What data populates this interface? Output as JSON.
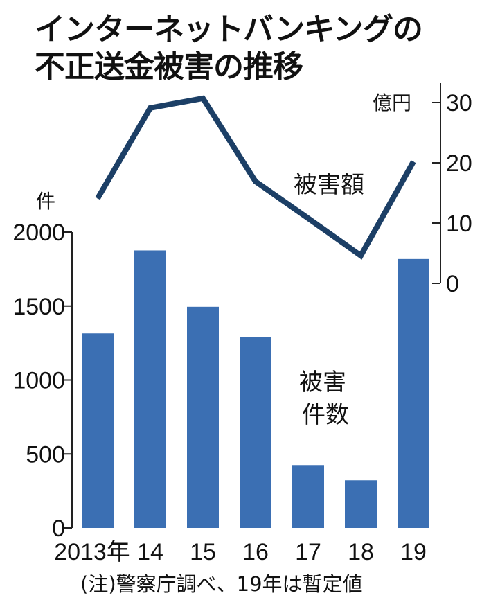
{
  "chart_data": {
    "type": "bar+line",
    "title": [
      "インターネットバンキングの",
      "不正送金被害の推移"
    ],
    "categories": [
      "2013年",
      "14",
      "15",
      "16",
      "17",
      "18",
      "19"
    ],
    "bar_series": {
      "name": [
        "被害",
        "件数"
      ],
      "values": [
        1315,
        1876,
        1495,
        1291,
        425,
        322,
        1818
      ],
      "unit": "件",
      "ylim": [
        0,
        2000
      ],
      "ticks": [
        "2000",
        "1500",
        "1000",
        "500",
        "0"
      ],
      "color": "#3b6fb3"
    },
    "line_series": {
      "name": "被害額",
      "values": [
        14.1,
        29.1,
        30.7,
        16.9,
        10.8,
        4.6,
        20.2
      ],
      "unit": "億円",
      "ylim": [
        0,
        30
      ],
      "ticks": [
        "30",
        "20",
        "10",
        "0"
      ],
      "color": "#1c3f66"
    },
    "note": "(注)警察庁調べ、19年は暫定値"
  }
}
